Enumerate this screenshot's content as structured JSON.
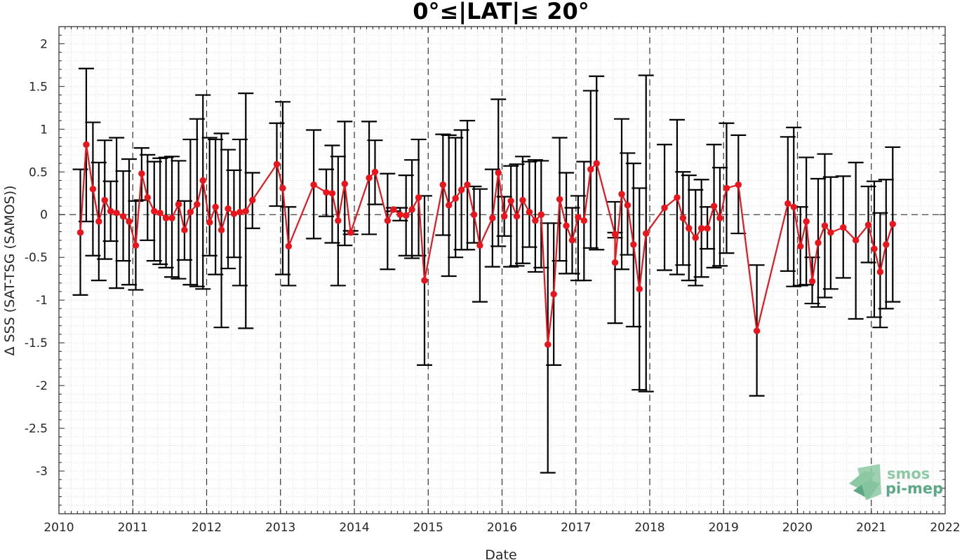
{
  "chart_data": {
    "type": "line",
    "title": "0°≤|LAT|≤ 20°",
    "xlabel": "Date",
    "ylabel": "Δ SSS (SAT-TSG (SAMOS))",
    "xlim": [
      2010,
      2022
    ],
    "ylim": [
      -3.5,
      2.2
    ],
    "x_ticks": [
      2010,
      2011,
      2012,
      2013,
      2014,
      2015,
      2016,
      2017,
      2018,
      2019,
      2020,
      2021,
      2022
    ],
    "y_ticks": [
      2,
      1.5,
      1,
      0.5,
      0,
      -0.5,
      -1,
      -1.5,
      -2,
      -2.5,
      -3
    ],
    "grid": "on",
    "year_lines": "dashed",
    "zero_line": "dashed",
    "error_bar_color": "#000000",
    "series": [
      {
        "color": "#e8161c",
        "points": [
          {
            "x": 2010.29,
            "y": -0.21,
            "lo": -0.94,
            "hi": 0.53
          },
          {
            "x": 2010.37,
            "y": 0.82,
            "lo": -0.08,
            "hi": 1.71
          },
          {
            "x": 2010.46,
            "y": 0.3,
            "lo": -0.48,
            "hi": 1.08
          },
          {
            "x": 2010.54,
            "y": -0.08,
            "lo": -0.77,
            "hi": 0.61
          },
          {
            "x": 2010.62,
            "y": 0.17,
            "lo": -0.52,
            "hi": 0.87
          },
          {
            "x": 2010.7,
            "y": 0.04,
            "lo": -0.31,
            "hi": 0.39
          },
          {
            "x": 2010.78,
            "y": 0.02,
            "lo": -0.86,
            "hi": 0.9
          },
          {
            "x": 2010.87,
            "y": -0.02,
            "lo": -0.54,
            "hi": 0.51
          },
          {
            "x": 2010.95,
            "y": -0.08,
            "lo": -0.82,
            "hi": 0.65
          },
          {
            "x": 2011.04,
            "y": -0.36,
            "lo": -0.88,
            "hi": 0.16
          },
          {
            "x": 2011.12,
            "y": 0.48,
            "lo": 0.17,
            "hi": 0.78
          },
          {
            "x": 2011.2,
            "y": 0.2,
            "lo": -0.3,
            "hi": 0.7
          },
          {
            "x": 2011.29,
            "y": 0.04,
            "lo": -0.54,
            "hi": 0.62
          },
          {
            "x": 2011.37,
            "y": 0.02,
            "lo": -0.58,
            "hi": 0.66
          },
          {
            "x": 2011.45,
            "y": -0.04,
            "lo": -0.62,
            "hi": 0.67
          },
          {
            "x": 2011.53,
            "y": -0.04,
            "lo": -0.73,
            "hi": 0.68
          },
          {
            "x": 2011.62,
            "y": 0.12,
            "lo": -0.75,
            "hi": 0.63
          },
          {
            "x": 2011.7,
            "y": -0.18,
            "lo": -0.53,
            "hi": 0.16
          },
          {
            "x": 2011.78,
            "y": 0.03,
            "lo": -0.82,
            "hi": 0.88
          },
          {
            "x": 2011.87,
            "y": 0.12,
            "lo": -0.84,
            "hi": 1.12
          },
          {
            "x": 2011.95,
            "y": 0.4,
            "lo": -0.87,
            "hi": 1.4
          },
          {
            "x": 2012.04,
            "y": -0.09,
            "lo": -0.48,
            "hi": 0.9
          },
          {
            "x": 2012.12,
            "y": 0.09,
            "lo": -0.7,
            "hi": 0.88
          },
          {
            "x": 2012.2,
            "y": -0.18,
            "lo": -1.32,
            "hi": 0.95
          },
          {
            "x": 2012.29,
            "y": 0.07,
            "lo": -0.63,
            "hi": 0.76
          },
          {
            "x": 2012.37,
            "y": 0.01,
            "lo": -0.5,
            "hi": 0.52
          },
          {
            "x": 2012.45,
            "y": 0.03,
            "lo": -0.83,
            "hi": 0.88
          },
          {
            "x": 2012.53,
            "y": 0.04,
            "lo": -1.33,
            "hi": 1.42
          },
          {
            "x": 2012.62,
            "y": 0.17,
            "lo": -0.16,
            "hi": 0.49
          },
          {
            "x": 2012.95,
            "y": 0.59,
            "lo": 0.1,
            "hi": 1.07
          },
          {
            "x": 2013.03,
            "y": 0.31,
            "lo": -0.7,
            "hi": 1.32
          },
          {
            "x": 2013.11,
            "y": -0.37,
            "lo": -0.83,
            "hi": 0.09
          },
          {
            "x": 2013.45,
            "y": 0.35,
            "lo": -0.28,
            "hi": 0.99
          },
          {
            "x": 2013.62,
            "y": 0.26,
            "lo": -0.02,
            "hi": 0.53
          },
          {
            "x": 2013.7,
            "y": 0.25,
            "lo": -0.33,
            "hi": 0.81
          },
          {
            "x": 2013.78,
            "y": -0.07,
            "lo": -0.83,
            "hi": 0.68
          },
          {
            "x": 2013.87,
            "y": 0.36,
            "lo": -0.36,
            "hi": 1.09
          },
          {
            "x": 2013.95,
            "y": -0.21,
            "lo": -0.23,
            "hi": -0.19
          },
          {
            "x": 2014.2,
            "y": 0.43,
            "lo": -0.23,
            "hi": 1.09
          },
          {
            "x": 2014.28,
            "y": 0.5,
            "lo": 0.12,
            "hi": 0.87
          },
          {
            "x": 2014.45,
            "y": -0.07,
            "lo": -0.64,
            "hi": 0.48
          },
          {
            "x": 2014.53,
            "y": 0.06,
            "lo": 0.04,
            "hi": 0.08
          },
          {
            "x": 2014.62,
            "y": 0.0,
            "lo": -0.07,
            "hi": 0.08
          },
          {
            "x": 2014.7,
            "y": -0.01,
            "lo": -0.48,
            "hi": 0.46
          },
          {
            "x": 2014.78,
            "y": 0.06,
            "lo": -0.51,
            "hi": 0.64
          },
          {
            "x": 2014.87,
            "y": 0.2,
            "lo": -0.48,
            "hi": 0.88
          },
          {
            "x": 2014.95,
            "y": -0.77,
            "lo": -1.76,
            "hi": 0.22
          },
          {
            "x": 2015.2,
            "y": 0.35,
            "lo": -0.24,
            "hi": 0.94
          },
          {
            "x": 2015.28,
            "y": 0.11,
            "lo": -0.72,
            "hi": 0.93
          },
          {
            "x": 2015.37,
            "y": 0.19,
            "lo": -0.5,
            "hi": 0.9
          },
          {
            "x": 2015.45,
            "y": 0.29,
            "lo": -0.41,
            "hi": 0.99
          },
          {
            "x": 2015.53,
            "y": 0.35,
            "lo": -0.41,
            "hi": 1.1
          },
          {
            "x": 2015.62,
            "y": 0.0,
            "lo": -0.33,
            "hi": 0.33
          },
          {
            "x": 2015.7,
            "y": -0.36,
            "lo": -1.02,
            "hi": 0.3
          },
          {
            "x": 2015.87,
            "y": -0.04,
            "lo": -0.61,
            "hi": 0.53
          },
          {
            "x": 2015.95,
            "y": 0.49,
            "lo": -0.37,
            "hi": 1.35
          },
          {
            "x": 2016.03,
            "y": -0.02,
            "lo": -0.25,
            "hi": 0.21
          },
          {
            "x": 2016.12,
            "y": 0.16,
            "lo": -0.61,
            "hi": 0.57
          },
          {
            "x": 2016.2,
            "y": -0.02,
            "lo": -0.6,
            "hi": 0.59
          },
          {
            "x": 2016.28,
            "y": 0.17,
            "lo": -0.57,
            "hi": 0.68
          },
          {
            "x": 2016.37,
            "y": 0.03,
            "lo": -0.38,
            "hi": 0.62
          },
          {
            "x": 2016.45,
            "y": -0.07,
            "lo": -0.67,
            "hi": 0.64
          },
          {
            "x": 2016.53,
            "y": 0.0,
            "lo": -0.62,
            "hi": 0.63
          },
          {
            "x": 2016.62,
            "y": -1.52,
            "lo": -3.02,
            "hi": -0.1
          },
          {
            "x": 2016.7,
            "y": -0.93,
            "lo": -1.76,
            "hi": -0.1
          },
          {
            "x": 2016.78,
            "y": 0.18,
            "lo": -0.54,
            "hi": 0.9
          },
          {
            "x": 2016.87,
            "y": -0.13,
            "lo": -0.69,
            "hi": 0.49
          },
          {
            "x": 2016.95,
            "y": -0.3,
            "lo": -0.69,
            "hi": 0.08
          },
          {
            "x": 2017.03,
            "y": -0.03,
            "lo": -0.77,
            "hi": 0.22
          },
          {
            "x": 2017.11,
            "y": -0.07,
            "lo": -0.77,
            "hi": 0.62
          },
          {
            "x": 2017.2,
            "y": 0.53,
            "lo": -0.39,
            "hi": 1.45
          },
          {
            "x": 2017.28,
            "y": 0.6,
            "lo": -0.41,
            "hi": 1.62
          },
          {
            "x": 2017.53,
            "y": -0.23,
            "lo": -0.27,
            "hi": -0.21
          },
          {
            "x": 2017.53,
            "y": -0.56,
            "lo": -1.27,
            "hi": 0.15
          },
          {
            "x": 2017.62,
            "y": 0.24,
            "lo": -0.64,
            "hi": 1.12
          },
          {
            "x": 2017.7,
            "y": 0.11,
            "lo": -0.47,
            "hi": 0.72
          },
          {
            "x": 2017.78,
            "y": -0.35,
            "lo": -1.31,
            "hi": 0.6
          },
          {
            "x": 2017.86,
            "y": -0.87,
            "lo": -2.05,
            "hi": 0.31
          },
          {
            "x": 2017.95,
            "y": -0.22,
            "lo": -2.07,
            "hi": 1.63
          },
          {
            "x": 2018.2,
            "y": 0.08,
            "lo": -0.65,
            "hi": 0.82
          },
          {
            "x": 2018.37,
            "y": 0.2,
            "lo": -0.7,
            "hi": 1.11
          },
          {
            "x": 2018.45,
            "y": -0.04,
            "lo": -0.59,
            "hi": 0.5
          },
          {
            "x": 2018.53,
            "y": -0.16,
            "lo": -0.77,
            "hi": 0.46
          },
          {
            "x": 2018.62,
            "y": -0.27,
            "lo": -0.83,
            "hi": 0.29
          },
          {
            "x": 2018.7,
            "y": -0.16,
            "lo": -0.73,
            "hi": 0.41
          },
          {
            "x": 2018.78,
            "y": -0.16,
            "lo": -0.4,
            "hi": 0.09
          },
          {
            "x": 2018.87,
            "y": 0.1,
            "lo": -0.62,
            "hi": 0.82
          },
          {
            "x": 2018.95,
            "y": -0.04,
            "lo": -0.6,
            "hi": 0.55
          },
          {
            "x": 2019.04,
            "y": 0.31,
            "lo": -0.45,
            "hi": 1.07
          },
          {
            "x": 2019.2,
            "y": 0.35,
            "lo": -0.22,
            "hi": 0.93
          },
          {
            "x": 2019.45,
            "y": -1.36,
            "lo": -2.12,
            "hi": -0.59
          },
          {
            "x": 2019.87,
            "y": 0.13,
            "lo": -0.66,
            "hi": 0.91
          },
          {
            "x": 2019.95,
            "y": 0.09,
            "lo": -0.84,
            "hi": 1.02
          },
          {
            "x": 2020.04,
            "y": -0.37,
            "lo": -0.83,
            "hi": 0.09
          },
          {
            "x": 2020.12,
            "y": -0.08,
            "lo": -0.82,
            "hi": 0.67
          },
          {
            "x": 2020.2,
            "y": -0.78,
            "lo": -1.04,
            "hi": -0.5
          },
          {
            "x": 2020.28,
            "y": -0.33,
            "lo": -1.08,
            "hi": 0.42
          },
          {
            "x": 2020.37,
            "y": -0.13,
            "lo": -0.97,
            "hi": 0.71
          },
          {
            "x": 2020.45,
            "y": -0.21,
            "lo": -0.87,
            "hi": 0.44
          },
          {
            "x": 2020.62,
            "y": -0.15,
            "lo": -0.74,
            "hi": 0.45
          },
          {
            "x": 2020.79,
            "y": -0.3,
            "lo": -1.22,
            "hi": 0.61
          },
          {
            "x": 2020.96,
            "y": -0.12,
            "lo": -0.56,
            "hi": 0.33
          },
          {
            "x": 2021.04,
            "y": -0.4,
            "lo": -1.2,
            "hi": 0.39
          },
          {
            "x": 2021.12,
            "y": -0.67,
            "lo": -1.32,
            "hi": 0.02
          },
          {
            "x": 2021.2,
            "y": -0.35,
            "lo": -1.1,
            "hi": 0.41
          },
          {
            "x": 2021.29,
            "y": -0.11,
            "lo": -1.02,
            "hi": 0.79
          }
        ]
      }
    ]
  },
  "logo": {
    "line1": "smos",
    "line2": "pi-mep",
    "colors": [
      "#8cc9a3",
      "#5aa884",
      "#2e8b57"
    ]
  }
}
